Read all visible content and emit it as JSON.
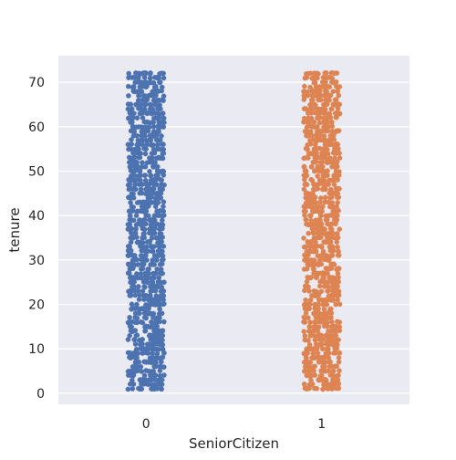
{
  "chart_data": {
    "type": "scatter",
    "subtype": "strip",
    "xlabel": "SeniorCitizen",
    "ylabel": "tenure",
    "categories": [
      "0",
      "1"
    ],
    "y_ticks": [
      0,
      10,
      20,
      30,
      40,
      50,
      60,
      70
    ],
    "ylim": [
      -2.5,
      76
    ],
    "grid": true,
    "legend": "none",
    "series": [
      {
        "category": "0",
        "color": "#4c72b0",
        "y_min": 1,
        "y_max": 72
      },
      {
        "category": "1",
        "color": "#dd8452",
        "y_min": 1,
        "y_max": 72
      }
    ],
    "plot_background": "#eaeaf2"
  }
}
